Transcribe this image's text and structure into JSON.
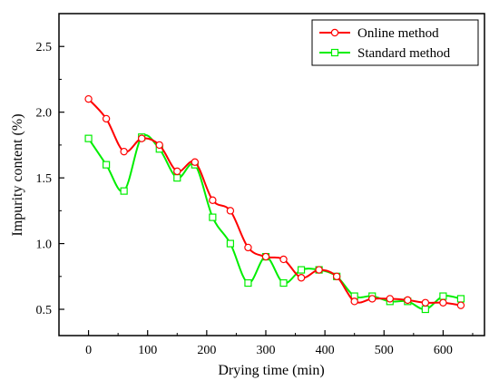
{
  "chart_data": {
    "type": "line",
    "title": "",
    "xlabel": "Drying time (min)",
    "ylabel": "Impurity content (%)",
    "xlim": [
      -50,
      670
    ],
    "ylim": [
      0.3,
      2.75
    ],
    "x_ticks": [
      0,
      100,
      200,
      300,
      400,
      500,
      600
    ],
    "x_tick_labels": [
      "0",
      "100",
      "200",
      "300",
      "400",
      "500",
      "600"
    ],
    "y_ticks": [
      0.5,
      1.0,
      1.5,
      2.0,
      2.5
    ],
    "y_tick_labels": [
      "0.5",
      "1.0",
      "1.5",
      "2.0",
      "2.5"
    ],
    "grid": false,
    "legend_position": "top-right",
    "series": [
      {
        "name": "Online method",
        "color": "#ff0000",
        "marker": "circle",
        "x": [
          0,
          30,
          60,
          90,
          120,
          150,
          180,
          210,
          240,
          270,
          300,
          330,
          360,
          390,
          420,
          450,
          480,
          510,
          540,
          570,
          600,
          630
        ],
        "values": [
          2.1,
          1.95,
          1.7,
          1.8,
          1.75,
          1.55,
          1.62,
          1.33,
          1.25,
          0.97,
          0.9,
          0.88,
          0.74,
          0.8,
          0.75,
          0.56,
          0.58,
          0.58,
          0.57,
          0.55,
          0.55,
          0.53
        ]
      },
      {
        "name": "Standard method",
        "color": "#00ee00",
        "marker": "square",
        "x": [
          0,
          30,
          60,
          90,
          120,
          150,
          180,
          210,
          240,
          270,
          300,
          330,
          360,
          390,
          420,
          450,
          480,
          510,
          540,
          570,
          600,
          630
        ],
        "values": [
          1.8,
          1.6,
          1.4,
          1.81,
          1.72,
          1.5,
          1.6,
          1.2,
          1.0,
          0.7,
          0.9,
          0.7,
          0.8,
          0.8,
          0.75,
          0.6,
          0.6,
          0.56,
          0.56,
          0.5,
          0.6,
          0.58
        ]
      }
    ]
  }
}
